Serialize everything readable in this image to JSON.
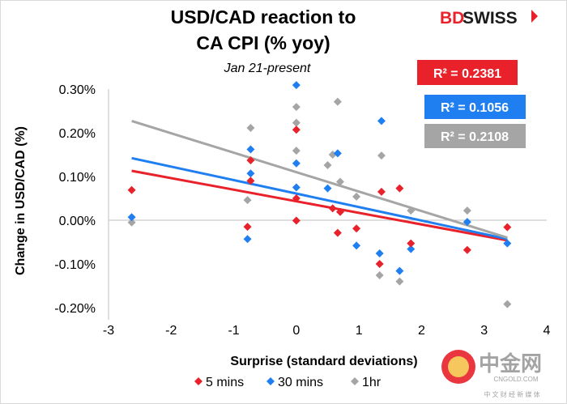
{
  "chart_data": {
    "type": "scatter",
    "title_lines": [
      "USD/CAD reaction to",
      "CA CPI (% yoy)"
    ],
    "subtitle": "Jan 21-present",
    "xlabel": "Surprise (standard deviations)",
    "ylabel": "Change in USD/CAD (%)",
    "xlim": [
      -3,
      4
    ],
    "ylim": [
      -0.2,
      0.3
    ],
    "x_ticks": [
      -3,
      -2,
      -1,
      0,
      1,
      2,
      3,
      4
    ],
    "y_ticks": [
      -0.2,
      -0.1,
      0.0,
      0.1,
      0.2,
      0.3
    ],
    "x_tick_labels": [
      "-3",
      "-2",
      "-1",
      "0",
      "1",
      "2",
      "3",
      "4"
    ],
    "y_tick_labels": [
      "-0.20%",
      "-0.10%",
      "0.00%",
      "0.10%",
      "0.20%",
      "0.30%"
    ],
    "grid": false,
    "legend_position": "bottom",
    "series": [
      {
        "name": "5 mins",
        "color": "#e8212a",
        "points": [
          [
            -2.63,
            0.069
          ],
          [
            -0.78,
            -0.015
          ],
          [
            -0.73,
            0.09
          ],
          [
            -0.73,
            0.137
          ],
          [
            0.0,
            0.207
          ],
          [
            0.0,
            0.05
          ],
          [
            0.0,
            -0.001
          ],
          [
            0.58,
            0.027
          ],
          [
            0.66,
            -0.029
          ],
          [
            0.7,
            0.019
          ],
          [
            0.96,
            -0.019
          ],
          [
            1.33,
            -0.1
          ],
          [
            1.36,
            0.065
          ],
          [
            1.65,
            0.073
          ],
          [
            1.83,
            -0.053
          ],
          [
            2.73,
            -0.068
          ],
          [
            3.37,
            -0.016
          ]
        ],
        "trend": {
          "from": [
            -2.63,
            0.113
          ],
          "to": [
            3.37,
            -0.046
          ]
        },
        "r2": "R² = 0.2381"
      },
      {
        "name": "30 mins",
        "color": "#1f7ff0",
        "points": [
          [
            -2.63,
            0.007
          ],
          [
            -0.78,
            -0.043
          ],
          [
            -0.73,
            0.107
          ],
          [
            -0.73,
            0.162
          ],
          [
            0.0,
            0.309
          ],
          [
            0.0,
            0.13
          ],
          [
            0.0,
            0.075
          ],
          [
            0.5,
            0.073
          ],
          [
            0.66,
            0.153
          ],
          [
            0.96,
            -0.058
          ],
          [
            1.33,
            -0.076
          ],
          [
            1.36,
            0.227
          ],
          [
            1.65,
            -0.116
          ],
          [
            1.83,
            -0.066
          ],
          [
            2.73,
            -0.004
          ],
          [
            3.37,
            -0.053
          ]
        ],
        "trend": {
          "from": [
            -2.63,
            0.142
          ],
          "to": [
            3.37,
            -0.043
          ]
        },
        "r2": "R² = 0.1056"
      },
      {
        "name": "1hr",
        "color": "#a5a5a5",
        "points": [
          [
            -2.63,
            -0.005
          ],
          [
            -0.78,
            0.046
          ],
          [
            -0.73,
            0.211
          ],
          [
            0.0,
            0.259
          ],
          [
            0.0,
            0.223
          ],
          [
            0.0,
            0.159
          ],
          [
            0.5,
            0.126
          ],
          [
            0.58,
            0.15
          ],
          [
            0.66,
            0.271
          ],
          [
            0.7,
            0.088
          ],
          [
            0.96,
            0.054
          ],
          [
            1.33,
            -0.126
          ],
          [
            1.36,
            0.148
          ],
          [
            1.65,
            -0.14
          ],
          [
            1.83,
            0.022
          ],
          [
            2.73,
            0.022
          ],
          [
            3.37,
            -0.192
          ]
        ],
        "trend": {
          "from": [
            -2.63,
            0.227
          ],
          "to": [
            3.37,
            -0.04
          ]
        },
        "r2": "R² = 0.2108"
      }
    ]
  },
  "brand": {
    "left": "BD",
    "right": "SWISS"
  },
  "watermark": {
    "chinese": "中金网",
    "domain": "CNGOLD.COM",
    "tagline": "中 文 财 经 新 媒 体"
  },
  "colors": {
    "accent": "#e8212a",
    "brand_dark": "#1a1a1a"
  }
}
